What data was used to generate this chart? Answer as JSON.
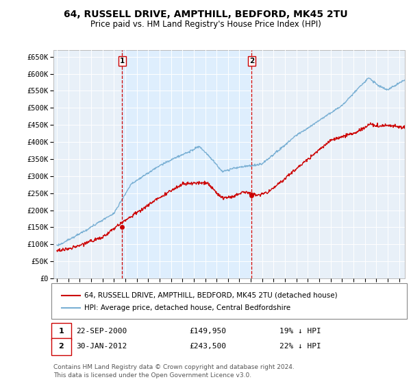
{
  "title": "64, RUSSELL DRIVE, AMPTHILL, BEDFORD, MK45 2TU",
  "subtitle": "Price paid vs. HM Land Registry's House Price Index (HPI)",
  "ylabel_ticks": [
    "£0",
    "£50K",
    "£100K",
    "£150K",
    "£200K",
    "£250K",
    "£300K",
    "£350K",
    "£400K",
    "£450K",
    "£500K",
    "£550K",
    "£600K",
    "£650K"
  ],
  "ytick_vals": [
    0,
    50000,
    100000,
    150000,
    200000,
    250000,
    300000,
    350000,
    400000,
    450000,
    500000,
    550000,
    600000,
    650000
  ],
  "ylim": [
    0,
    670000
  ],
  "xlim_start": 1994.7,
  "xlim_end": 2025.5,
  "xticks": [
    1995,
    1996,
    1997,
    1998,
    1999,
    2000,
    2001,
    2002,
    2003,
    2004,
    2005,
    2006,
    2007,
    2008,
    2009,
    2010,
    2011,
    2012,
    2013,
    2014,
    2015,
    2016,
    2017,
    2018,
    2019,
    2020,
    2021,
    2022,
    2023,
    2024,
    2025
  ],
  "transaction1_x": 2000.73,
  "transaction1_y": 149950,
  "transaction1_label": "1",
  "transaction2_x": 2012.08,
  "transaction2_y": 243500,
  "transaction2_label": "2",
  "line_color_property": "#cc0000",
  "line_color_hpi": "#7ab0d4",
  "shade_color": "#ddeeff",
  "plot_bg": "#e8f0f8",
  "grid_color": "#ffffff",
  "legend_label1": "64, RUSSELL DRIVE, AMPTHILL, BEDFORD, MK45 2TU (detached house)",
  "legend_label2": "HPI: Average price, detached house, Central Bedfordshire",
  "note1_date": "22-SEP-2000",
  "note1_price": "£149,950",
  "note1_info": "19% ↓ HPI",
  "note2_date": "30-JAN-2012",
  "note2_price": "£243,500",
  "note2_info": "22% ↓ HPI",
  "footer": "Contains HM Land Registry data © Crown copyright and database right 2024.\nThis data is licensed under the Open Government Licence v3.0."
}
